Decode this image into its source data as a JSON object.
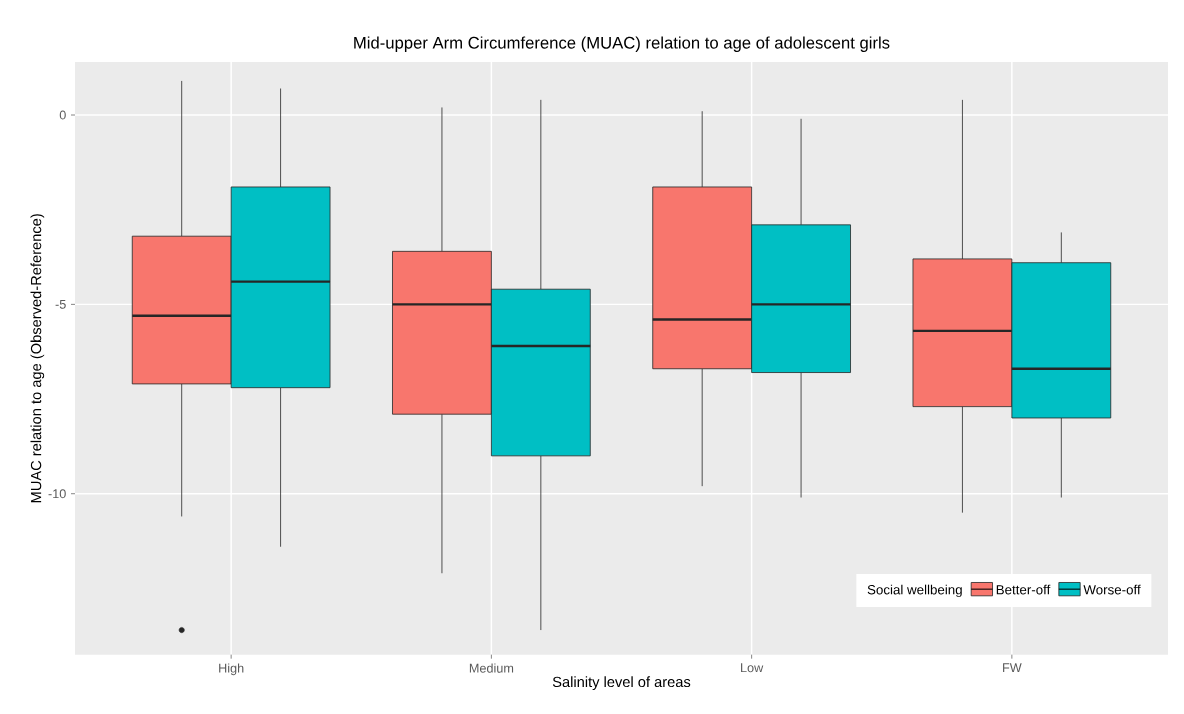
{
  "chart_data": {
    "type": "box",
    "title": "Mid-upper Arm Circumference (MUAC) relation to age of adolescent girls",
    "xlabel": "Salinity level of areas",
    "ylabel": "MUAC relation to age (Observed-Reference)",
    "legend_title": "Social wellbeing",
    "legend": "bottom right",
    "grid": true,
    "categories": [
      "High",
      "Medium",
      "Low",
      "FW"
    ],
    "ylim": [
      -14.25,
      1.4
    ],
    "yticks": [
      -10,
      -5,
      0
    ],
    "series": [
      {
        "name": "Better-off",
        "color": "#f8766d",
        "boxes": [
          {
            "low": -10.6,
            "q1": -7.1,
            "median": -5.3,
            "q3": -3.2,
            "high": 0.9,
            "outliers": [
              -13.6
            ]
          },
          {
            "low": -12.1,
            "q1": -7.9,
            "median": -5.0,
            "q3": -3.6,
            "high": 0.2
          },
          {
            "low": -9.8,
            "q1": -6.7,
            "median": -5.4,
            "q3": -1.9,
            "high": 0.1
          },
          {
            "low": -10.5,
            "q1": -7.7,
            "median": -5.7,
            "q3": -3.8,
            "high": 0.4
          }
        ]
      },
      {
        "name": "Worse-off",
        "color": "#00bfc4",
        "boxes": [
          {
            "low": -11.4,
            "q1": -7.2,
            "median": -4.4,
            "q3": -1.9,
            "high": 0.7
          },
          {
            "low": -13.6,
            "q1": -9.0,
            "median": -6.1,
            "q3": -4.6,
            "high": 0.4
          },
          {
            "low": -10.1,
            "q1": -6.8,
            "median": -5.0,
            "q3": -2.9,
            "high": -0.1
          },
          {
            "low": -10.1,
            "q1": -8.0,
            "median": -6.7,
            "q3": -3.9,
            "high": -3.1
          }
        ]
      }
    ]
  }
}
